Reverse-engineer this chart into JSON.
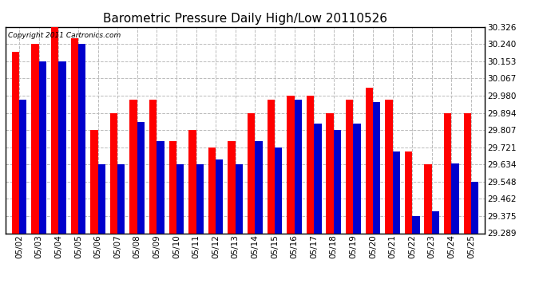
{
  "title": "Barometric Pressure Daily High/Low 20110526",
  "copyright": "Copyright 2011 Cartronics.com",
  "yticks": [
    29.289,
    29.375,
    29.462,
    29.548,
    29.634,
    29.721,
    29.807,
    29.894,
    29.98,
    30.067,
    30.153,
    30.24,
    30.326
  ],
  "ylim": [
    29.289,
    30.326
  ],
  "dates": [
    "05/02",
    "05/03",
    "05/04",
    "05/05",
    "05/06",
    "05/07",
    "05/08",
    "05/09",
    "05/10",
    "05/11",
    "05/12",
    "05/13",
    "05/14",
    "05/15",
    "05/16",
    "05/17",
    "05/18",
    "05/19",
    "05/20",
    "05/21",
    "05/22",
    "05/23",
    "05/24",
    "05/25"
  ],
  "highs": [
    30.2,
    30.24,
    30.326,
    30.27,
    29.807,
    29.894,
    29.96,
    29.96,
    29.75,
    29.807,
    29.721,
    29.75,
    29.894,
    29.96,
    29.98,
    29.98,
    29.894,
    29.96,
    30.02,
    29.96,
    29.7,
    29.634,
    29.894,
    29.894
  ],
  "lows": [
    29.96,
    30.153,
    30.153,
    30.24,
    29.634,
    29.634,
    29.85,
    29.75,
    29.634,
    29.634,
    29.66,
    29.634,
    29.75,
    29.721,
    29.96,
    29.84,
    29.807,
    29.84,
    29.95,
    29.7,
    29.375,
    29.4,
    29.64,
    29.548
  ],
  "high_color": "#ff0000",
  "low_color": "#0000cc",
  "bg_color": "#ffffff",
  "grid_color": "#bbbbbb",
  "title_fontsize": 11,
  "tick_fontsize": 7.5,
  "copyright_fontsize": 6.5
}
